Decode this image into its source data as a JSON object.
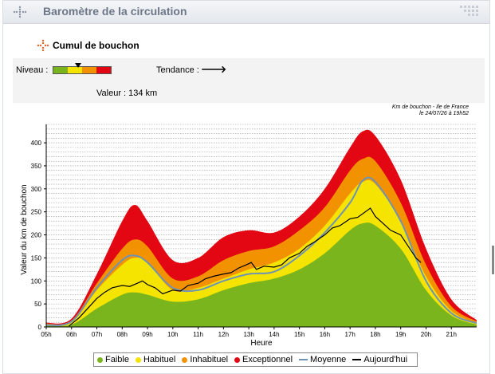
{
  "header": {
    "title": "Baromètre de la circulation",
    "icon": "dots-menu-icon",
    "right_icon": "grip-icon"
  },
  "section": {
    "title": "Cumul de bouchon",
    "icon": "cross-dots-icon"
  },
  "info": {
    "niveau_label": "Niveau :",
    "tendance_label": "Tendance :",
    "tendance_arrow": "🡒",
    "valeur_label": "Valeur : 134 km",
    "gauge_level": 0.45
  },
  "chart_note": {
    "line1": "Km de bouchon - Ile de France",
    "line2": "le 24/07/26 à 19h52"
  },
  "colors": {
    "faible": "#7ab51d",
    "habituel": "#f5e400",
    "inhabituel": "#f39200",
    "exceptionnel": "#e30613",
    "moyenne": "#6f93b4",
    "aujourdhui": "#000000"
  },
  "chart_data": {
    "type": "area",
    "ylabel": "Valeur du  km de bouchon",
    "xlabel": "Heure",
    "ylim": [
      0,
      440
    ],
    "xlim": [
      5,
      22
    ],
    "yticks": [
      "0",
      "50",
      "100",
      "150",
      "200",
      "250",
      "300",
      "350",
      "400"
    ],
    "xticks": [
      "05h",
      "06h",
      "07h",
      "08h",
      "09h",
      "10h",
      "11h",
      "12h",
      "13h",
      "14h",
      "15h",
      "16h",
      "17h",
      "18h",
      "19h",
      "20h",
      "21h"
    ],
    "x": [
      5,
      6,
      7,
      8,
      8.5,
      9,
      10,
      11,
      12,
      13,
      14,
      15,
      16,
      17,
      17.5,
      18,
      19,
      20,
      21,
      22
    ],
    "series": [
      {
        "name": "Faible",
        "values": [
          3,
          5,
          40,
          70,
          75,
          70,
          55,
          60,
          80,
          95,
          105,
          125,
          160,
          210,
          225,
          220,
          170,
          80,
          25,
          5
        ]
      },
      {
        "name": "Habituel",
        "values": [
          5,
          10,
          80,
          135,
          150,
          140,
          80,
          85,
          105,
          125,
          140,
          170,
          220,
          290,
          315,
          310,
          230,
          110,
          35,
          8
        ]
      },
      {
        "name": "Inhabituel",
        "values": [
          7,
          14,
          95,
          170,
          190,
          175,
          105,
          110,
          145,
          165,
          175,
          210,
          260,
          340,
          365,
          360,
          270,
          135,
          45,
          12
        ]
      },
      {
        "name": "Exceptionnel",
        "values": [
          9,
          18,
          115,
          230,
          265,
          230,
          145,
          150,
          195,
          210,
          205,
          240,
          300,
          390,
          425,
          415,
          320,
          170,
          60,
          15
        ]
      },
      {
        "name": "Moyenne",
        "values": [
          4,
          12,
          85,
          145,
          155,
          140,
          85,
          80,
          100,
          115,
          120,
          155,
          205,
          270,
          318,
          315,
          230,
          100,
          30,
          8
        ]
      },
      {
        "name": "Aujourd'hui",
        "x": [
          5.9,
          6.3,
          6.6,
          7,
          7.3,
          7.6,
          8,
          8.3,
          8.6,
          8.8,
          9,
          9.3,
          9.6,
          10,
          10.3,
          10.6,
          11,
          11.3,
          11.6,
          12,
          12.3,
          12.6,
          12.9,
          13.1,
          13.3,
          13.6,
          14,
          14.3,
          14.6,
          15,
          15.3,
          15.6,
          16,
          16.3,
          16.6,
          17,
          17.3,
          17.6,
          17.8,
          18,
          18.3,
          18.6,
          19,
          19.3,
          19.6,
          19.8
        ],
        "values": [
          2,
          20,
          38,
          62,
          75,
          85,
          90,
          88,
          95,
          100,
          92,
          85,
          72,
          80,
          78,
          90,
          95,
          105,
          110,
          115,
          118,
          128,
          135,
          140,
          125,
          132,
          130,
          135,
          150,
          160,
          175,
          185,
          200,
          215,
          220,
          235,
          238,
          250,
          258,
          240,
          225,
          210,
          200,
          175,
          150,
          140
        ]
      }
    ],
    "legend": [
      "Faible",
      "Habituel",
      "Inhabituel",
      "Exceptionnel",
      "Moyenne",
      "Aujourd'hui"
    ],
    "legend_placement": "bottom"
  }
}
